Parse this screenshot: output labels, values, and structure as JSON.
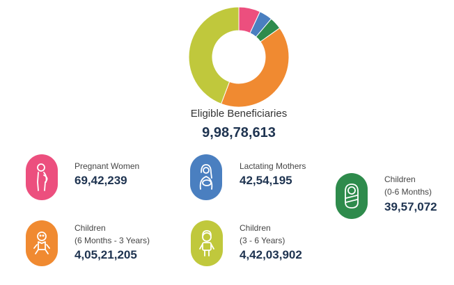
{
  "chart_data": {
    "type": "pie",
    "donut": true,
    "title": "Eligible Beneficiaries",
    "total": "9,98,78,613",
    "total_value": 99878613,
    "categories": [
      "Pregnant Women",
      "Lactating Mothers",
      "Children (0-6 Months)",
      "Children (6 Months - 3 Years)",
      "Children (3 - 6 Years)"
    ],
    "values": [
      6942239,
      4254195,
      3957072,
      40521205,
      44203902
    ],
    "colors": [
      "#ec4f7e",
      "#4a7fc0",
      "#2e8b4c",
      "#f08a31",
      "#c0c83c"
    ]
  },
  "cards": [
    {
      "label_line1": "Pregnant Women",
      "label_line2": "",
      "value": "69,42,239",
      "color": "#ec4f7e",
      "icon": "pregnant-woman-icon"
    },
    {
      "label_line1": "Lactating Mothers",
      "label_line2": "",
      "value": "42,54,195",
      "color": "#4a7fc0",
      "icon": "lactating-mother-icon"
    },
    {
      "label_line1": "Children",
      "label_line2": "(0-6 Months)",
      "value": "39,57,072",
      "color": "#2e8b4c",
      "icon": "infant-icon"
    },
    {
      "label_line1": "Children",
      "label_line2": "(6 Months - 3 Years)",
      "value": "4,05,21,205",
      "color": "#f08a31",
      "icon": "toddler-icon"
    },
    {
      "label_line1": "Children",
      "label_line2": "(3 - 6 Years)",
      "value": "4,42,03,902",
      "color": "#c0c83c",
      "icon": "child-icon"
    }
  ]
}
